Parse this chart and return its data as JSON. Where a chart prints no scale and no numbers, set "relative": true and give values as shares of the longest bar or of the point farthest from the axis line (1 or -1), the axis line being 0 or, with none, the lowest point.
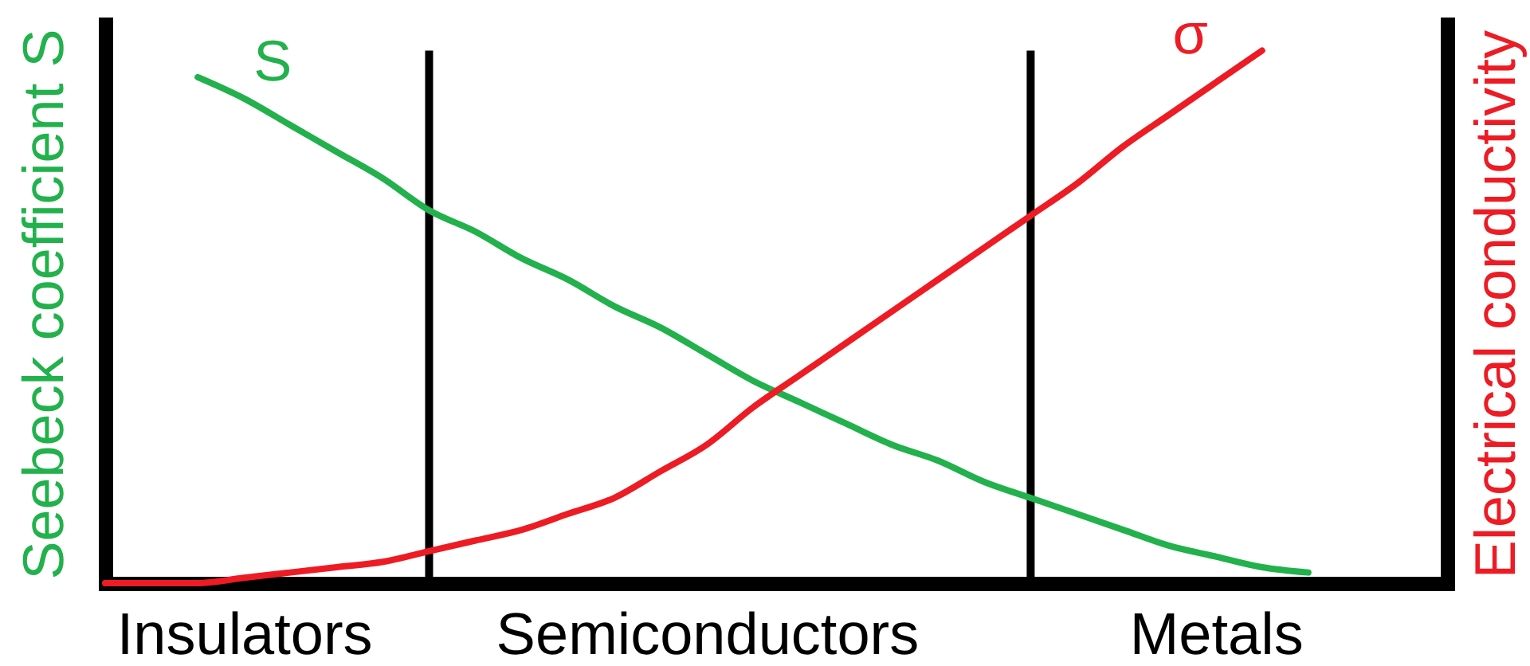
{
  "chart_data": {
    "type": "line",
    "relative": true,
    "ylabel": "Seebeck coefficient S",
    "y2label": "Electrical conductivity",
    "tick_labels": "x",
    "categories": [
      null,
      null,
      null,
      "Insulators",
      null,
      null,
      null,
      null,
      null,
      null,
      null,
      null,
      null,
      "Semiconductors",
      null,
      null,
      null,
      null,
      null,
      null,
      null,
      null,
      null,
      null,
      "Metals",
      null,
      null,
      null,
      null,
      null
    ],
    "series": [
      {
        "name": "S",
        "color": "#22b14c",
        "values": [
          null,
          null,
          0.95,
          0.91,
          0.86,
          0.81,
          0.76,
          0.7,
          0.66,
          0.61,
          0.57,
          0.52,
          0.48,
          0.43,
          0.38,
          0.34,
          0.3,
          0.26,
          0.23,
          0.19,
          0.16,
          0.13,
          0.1,
          0.07,
          0.05,
          0.03,
          0.02,
          null,
          null,
          null
        ]
      },
      {
        "name": "σ",
        "color": "#ed1c24",
        "axis": "y2",
        "values": [
          0,
          0,
          0,
          0.01,
          0.02,
          0.03,
          0.04,
          0.06,
          0.08,
          0.1,
          0.13,
          0.16,
          0.21,
          0.26,
          0.33,
          0.39,
          0.45,
          0.51,
          0.57,
          0.63,
          0.69,
          0.75,
          0.82,
          0.88,
          0.94,
          1,
          null,
          null,
          null,
          null
        ]
      }
    ]
  }
}
